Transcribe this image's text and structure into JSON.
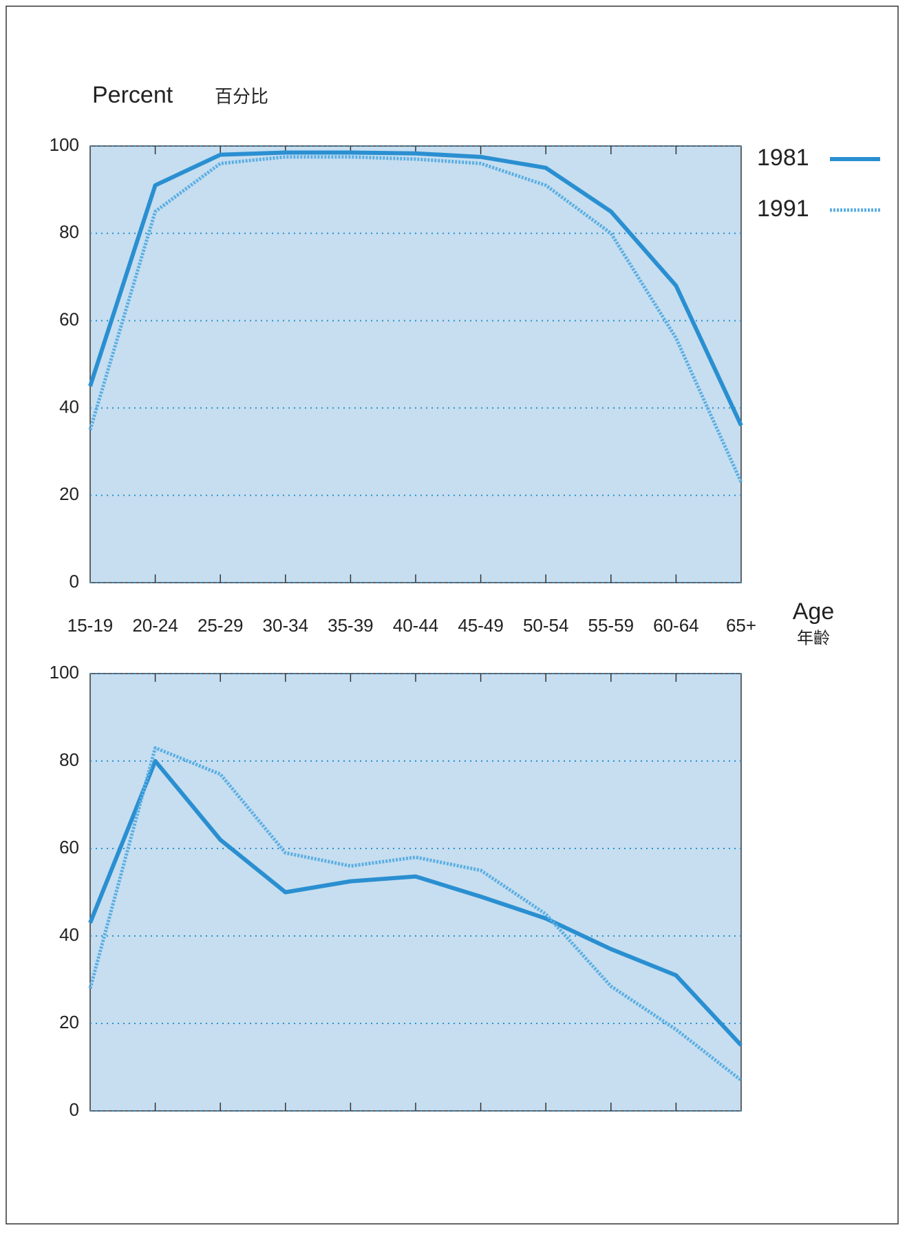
{
  "chart_data": {
    "type": "line",
    "y_label": "Percent",
    "y_label_zh": "百分比",
    "x_label": "Age",
    "x_label_zh": "年齡",
    "categories": [
      "15-19",
      "20-24",
      "25-29",
      "30-34",
      "35-39",
      "40-44",
      "45-49",
      "50-54",
      "55-59",
      "60-64",
      "65+"
    ],
    "ylim": [
      0,
      100
    ],
    "yticks": [
      0,
      20,
      40,
      60,
      80,
      100
    ],
    "grid": true,
    "legend_position": "right",
    "panels": [
      {
        "series": [
          {
            "name": "1981",
            "color": "#2a8fd1",
            "style": "solid",
            "values": [
              45,
              91,
              98,
              98.5,
              98.5,
              98.3,
              97.5,
              95,
              85,
              68,
              36
            ]
          },
          {
            "name": "1991",
            "color": "#5aaee3",
            "style": "hatched",
            "values": [
              35,
              85,
              96,
              97.5,
              97.5,
              97,
              96,
              91,
              80,
              56,
              23
            ]
          }
        ]
      },
      {
        "series": [
          {
            "color": "#2a8fd1",
            "style": "solid",
            "values": [
              43,
              80,
              62,
              50,
              52.5,
              53.6,
              49,
              44,
              37,
              31,
              15
            ]
          },
          {
            "color": "#5aaee3",
            "style": "hatched",
            "values": [
              28,
              83,
              77,
              59,
              56,
              58,
              55,
              45,
              28.5,
              18.6,
              7
            ]
          }
        ]
      }
    ]
  }
}
